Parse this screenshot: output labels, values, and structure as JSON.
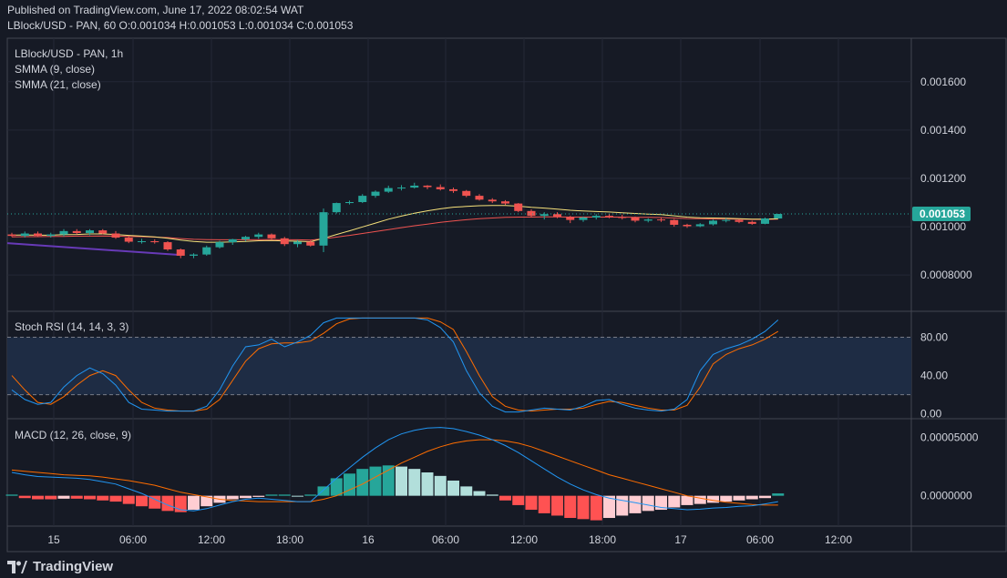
{
  "header": {
    "published": "Published on TradingView.com, June 17, 2022 08:02:54 WAT",
    "ohlc": "LBlock/USD - PAN, 60 O:0.001034 H:0.001053 L:0.001034 C:0.001053"
  },
  "footer": {
    "brand": "TradingView",
    "logo_icon": "tradingview-logo-icon"
  },
  "colors": {
    "background": "#161a25",
    "grid": "#242836",
    "up": "#26a69a",
    "down": "#ef5350",
    "smma9": "#f7e27b",
    "smma21": "#ef5350",
    "trendline": "#673ab7",
    "stoch_k": "#2196f3",
    "stoch_d": "#ff6d00",
    "band": "#1e2c44",
    "macd": "#2196f3",
    "signal": "#ff6d00",
    "hist_up_strong": "#26a69a",
    "hist_up_weak": "#b2dfdb",
    "hist_down_strong": "#ff5252",
    "hist_down_weak": "#ffcdd2",
    "price_badge": "#26a69a"
  },
  "chart_data": [
    {
      "type": "candlestick",
      "title": "LBlock/USD - PAN, 1h",
      "legend": [
        "SMMA (9, close)",
        "SMMA (21, close)"
      ],
      "x": [
        "15",
        "06:00",
        "12:00",
        "18:00",
        "16",
        "06:00",
        "12:00",
        "18:00",
        "17",
        "06:00",
        "12:00"
      ],
      "y_ticks": [
        "0.001600",
        "0.001400",
        "0.001200",
        "0.001000",
        "0.0008000"
      ],
      "ylim": [
        0.00065,
        0.00178
      ],
      "last_price": "0.001053",
      "ohlc": [
        [
          0.000968,
          0.000975,
          0.000958,
          0.000962
        ],
        [
          0.000962,
          0.00098,
          0.000955,
          0.000972
        ],
        [
          0.000972,
          0.00098,
          0.000958,
          0.000962
        ],
        [
          0.000962,
          0.000975,
          0.000955,
          0.000968
        ],
        [
          0.000968,
          0.00099,
          0.00096,
          0.000982
        ],
        [
          0.000982,
          0.00099,
          0.000968,
          0.000974
        ],
        [
          0.000974,
          0.00099,
          0.000965,
          0.000985
        ],
        [
          0.000985,
          0.00099,
          0.000968,
          0.000972
        ],
        [
          0.000972,
          0.000982,
          0.00095,
          0.000955
        ],
        [
          0.000955,
          0.000962,
          0.000932,
          0.000938
        ],
        [
          0.000938,
          0.00095,
          0.00093,
          0.00094
        ],
        [
          0.00094,
          0.000948,
          0.00093,
          0.000936
        ],
        [
          0.000936,
          0.00094,
          0.0009,
          0.000906
        ],
        [
          0.000906,
          0.00091,
          0.00087,
          0.00088
        ],
        [
          0.00088,
          0.00089,
          0.00087,
          0.000885
        ],
        [
          0.000885,
          0.000922,
          0.00088,
          0.000915
        ],
        [
          0.000915,
          0.000942,
          0.00091,
          0.000936
        ],
        [
          0.000936,
          0.00095,
          0.000925,
          0.000948
        ],
        [
          0.000948,
          0.000962,
          0.00094,
          0.000958
        ],
        [
          0.000958,
          0.000975,
          0.00095,
          0.000968
        ],
        [
          0.000968,
          0.000972,
          0.000945,
          0.000952
        ],
        [
          0.000952,
          0.000958,
          0.00092,
          0.000928
        ],
        [
          0.000928,
          0.000945,
          0.000915,
          0.000938
        ],
        [
          0.000938,
          0.000945,
          0.000918,
          0.000922
        ],
        [
          0.000922,
          0.001075,
          0.000895,
          0.00106
        ],
        [
          0.00106,
          0.0011,
          0.001055,
          0.001098
        ],
        [
          0.001098,
          0.001108,
          0.001092,
          0.001102
        ],
        [
          0.001102,
          0.001135,
          0.001098,
          0.001128
        ],
        [
          0.001128,
          0.00115,
          0.00112,
          0.001145
        ],
        [
          0.001145,
          0.00117,
          0.00114,
          0.00116
        ],
        [
          0.00116,
          0.001172,
          0.00115,
          0.001162
        ],
        [
          0.001162,
          0.001182,
          0.001158,
          0.00117
        ],
        [
          0.00117,
          0.001172,
          0.001155,
          0.001164
        ],
        [
          0.001164,
          0.001175,
          0.00115,
          0.001155
        ],
        [
          0.001155,
          0.001162,
          0.00114,
          0.001148
        ],
        [
          0.001148,
          0.001152,
          0.001122,
          0.001128
        ],
        [
          0.001128,
          0.001135,
          0.001108,
          0.001112
        ],
        [
          0.001112,
          0.001118,
          0.001098,
          0.001105
        ],
        [
          0.001105,
          0.00111,
          0.00109,
          0.001096
        ],
        [
          0.001096,
          0.001098,
          0.00106,
          0.001065
        ],
        [
          0.001065,
          0.001072,
          0.00104,
          0.001045
        ],
        [
          0.001045,
          0.00106,
          0.00103,
          0.001052
        ],
        [
          0.001052,
          0.00106,
          0.001035,
          0.00104
        ],
        [
          0.00104,
          0.001045,
          0.001015,
          0.001028
        ],
        [
          0.001028,
          0.001042,
          0.00102,
          0.001038
        ],
        [
          0.001038,
          0.001052,
          0.00103,
          0.001045
        ],
        [
          0.001045,
          0.001055,
          0.001035,
          0.00104
        ],
        [
          0.00104,
          0.00105,
          0.00103,
          0.001038
        ],
        [
          0.001038,
          0.001042,
          0.001018,
          0.001025
        ],
        [
          0.001025,
          0.001035,
          0.001018,
          0.00103
        ],
        [
          0.00103,
          0.001038,
          0.00102,
          0.001028
        ],
        [
          0.001028,
          0.001032,
          0.001,
          0.001008
        ],
        [
          0.001008,
          0.001012,
          0.000995,
          0.001002
        ],
        [
          0.001002,
          0.001015,
          0.000998,
          0.00101
        ],
        [
          0.00101,
          0.00103,
          0.001005,
          0.001025
        ],
        [
          0.001025,
          0.001035,
          0.001018,
          0.001028
        ],
        [
          0.001028,
          0.001032,
          0.001015,
          0.00102
        ],
        [
          0.00102,
          0.001025,
          0.001008,
          0.001012
        ],
        [
          0.001012,
          0.001038,
          0.00101,
          0.001034
        ],
        [
          0.001034,
          0.001053,
          0.001034,
          0.001053
        ]
      ],
      "smma9": [
        0.000965,
        0.000966,
        0.000965,
        0.000965,
        0.000967,
        0.000968,
        0.00097,
        0.00097,
        0.000968,
        0.000964,
        0.000961,
        0.000958,
        0.000952,
        0.000945,
        0.000939,
        0.000936,
        0.000936,
        0.000937,
        0.000939,
        0.000942,
        0.000943,
        0.000941,
        0.00094,
        0.000938,
        0.000952,
        0.000968,
        0.000983,
        0.000999,
        0.001015,
        0.001031,
        0.001044,
        0.001056,
        0.001066,
        0.001074,
        0.001081,
        0.001084,
        0.001087,
        0.001088,
        0.001088,
        0.001085,
        0.00108,
        0.001077,
        0.001073,
        0.001068,
        0.001065,
        0.001063,
        0.001061,
        0.001058,
        0.001055,
        0.001052,
        0.00105,
        0.001045,
        0.00104,
        0.001037,
        0.001036,
        0.001035,
        0.001033,
        0.001031,
        0.001031,
        0.001033
      ],
      "smma21": [
        0.000958,
        0.000959,
        0.000959,
        0.00096,
        0.00096,
        0.000961,
        0.000961,
        0.000962,
        0.000961,
        0.00096,
        0.000959,
        0.000957,
        0.000955,
        0.000951,
        0.000948,
        0.000947,
        0.000946,
        0.000946,
        0.000946,
        0.000947,
        0.000947,
        0.000946,
        0.000946,
        0.000945,
        0.00095,
        0.000957,
        0.000964,
        0.000972,
        0.00098,
        0.000988,
        0.000996,
        0.001004,
        0.001011,
        0.001018,
        0.001024,
        0.001029,
        0.001033,
        0.001036,
        0.001039,
        0.00104,
        0.00104,
        0.001041,
        0.001041,
        0.00104,
        0.00104,
        0.00104,
        0.00104,
        0.00104,
        0.001039,
        0.001039,
        0.001038,
        0.001036,
        0.001034,
        0.001033,
        0.001032,
        0.001032,
        0.001031,
        0.00103,
        0.00103,
        0.001031
      ],
      "trendline": [
        [
          0,
          0.000932
        ],
        [
          13,
          0.000883
        ]
      ]
    },
    {
      "type": "line",
      "title": "Stoch RSI (14, 14, 3, 3)",
      "y_ticks": [
        "80.00",
        "40.00",
        "0.00"
      ],
      "ylim": [
        -5,
        107
      ],
      "band": [
        20,
        80
      ],
      "k": [
        25,
        15,
        10,
        12,
        28,
        40,
        48,
        42,
        30,
        12,
        5,
        4,
        3,
        3,
        3,
        8,
        25,
        50,
        70,
        72,
        78,
        70,
        75,
        82,
        95,
        100,
        100,
        100,
        100,
        100,
        100,
        100,
        98,
        90,
        75,
        45,
        22,
        8,
        2,
        2,
        4,
        6,
        5,
        4,
        8,
        14,
        15,
        10,
        6,
        4,
        3,
        5,
        15,
        45,
        62,
        68,
        72,
        78,
        86,
        98
      ],
      "d": [
        40,
        25,
        12,
        10,
        18,
        30,
        40,
        45,
        40,
        25,
        12,
        6,
        4,
        3,
        3,
        5,
        15,
        35,
        55,
        68,
        73,
        74,
        74,
        76,
        84,
        94,
        99,
        100,
        100,
        100,
        100,
        100,
        100,
        96,
        88,
        65,
        40,
        18,
        8,
        4,
        3,
        4,
        5,
        5,
        6,
        10,
        13,
        12,
        9,
        6,
        4,
        4,
        9,
        28,
        52,
        62,
        68,
        72,
        78,
        86
      ]
    },
    {
      "type": "line+bar",
      "title": "MACD (12, 26, close, 9)",
      "y_ticks": [
        "0.00005000",
        "0.0000000"
      ],
      "ylim": [
        -2.6e-05,
        6.6e-05
      ],
      "macd": [
        2e-05,
        1.8e-05,
        1.65e-05,
        1.6e-05,
        1.55e-05,
        1.5e-05,
        1.4e-05,
        1.2e-05,
        1e-05,
        6e-06,
        2e-06,
        -3e-06,
        -8e-06,
        -1.2e-05,
        -1.3e-05,
        -1.1e-05,
        -8e-06,
        -5e-06,
        -3e-06,
        -2e-06,
        -3e-06,
        -4e-06,
        -5e-06,
        -5e-06,
        5e-06,
        1.5e-05,
        2.4e-05,
        3.3e-05,
        4.1e-05,
        4.8e-05,
        5.3e-05,
        5.6e-05,
        5.8e-05,
        5.85e-05,
        5.75e-05,
        5.5e-05,
        5.2e-05,
        4.8e-05,
        4.3e-05,
        3.7e-05,
        3e-05,
        2.3e-05,
        1.6e-05,
        1e-05,
        5e-06,
        1e-06,
        -2e-06,
        -4e-06,
        -6e-06,
        -8e-06,
        -1e-05,
        -1.1e-05,
        -1.2e-05,
        -1.15e-05,
        -1.05e-05,
        -1e-05,
        -9e-06,
        -8.5e-06,
        -7e-06,
        -5e-06
      ],
      "signal": [
        2.2e-05,
        2.1e-05,
        2e-05,
        1.9e-05,
        1.8e-05,
        1.75e-05,
        1.7e-05,
        1.6e-05,
        1.45e-05,
        1.3e-05,
        1.1e-05,
        9e-06,
        6e-06,
        3e-06,
        1e-06,
        -1e-06,
        -3e-06,
        -4e-06,
        -4.5e-06,
        -5e-06,
        -5e-06,
        -5e-06,
        -5e-06,
        -5e-06,
        -3e-06,
        0.0,
        5e-06,
        1e-05,
        1.6e-05,
        2.2e-05,
        2.8e-05,
        3.3e-05,
        3.8e-05,
        4.2e-05,
        4.5e-05,
        4.7e-05,
        4.8e-05,
        4.8e-05,
        4.7e-05,
        4.5e-05,
        4.2e-05,
        3.8e-05,
        3.4e-05,
        3e-05,
        2.6e-05,
        2.2e-05,
        1.8e-05,
        1.5e-05,
        1.2e-05,
        9e-06,
        6e-06,
        3e-06,
        0.0,
        -2e-06,
        -4e-06,
        -5.5e-06,
        -6.5e-06,
        -7.5e-06,
        -8e-06,
        -8e-06
      ],
      "hist": [
        1e-06,
        -2e-06,
        -3e-06,
        -3e-06,
        -2.5e-06,
        -2.5e-06,
        -3e-06,
        -4e-06,
        -5e-06,
        -7e-06,
        -9e-06,
        -1.1e-05,
        -1.3e-05,
        -1.4e-05,
        -1.2e-05,
        -9e-06,
        -6e-06,
        -3e-06,
        -2e-06,
        -1e-06,
        1e-06,
        1e-06,
        0.0,
        1e-06,
        8e-06,
        1.5e-05,
        1.9e-05,
        2.3e-05,
        2.5e-05,
        2.6e-05,
        2.5e-05,
        2.3e-05,
        2e-05,
        1.7e-05,
        1.3e-05,
        8e-06,
        4e-06,
        1e-06,
        -4e-06,
        -8e-06,
        -1.2e-05,
        -1.5e-05,
        -1.7e-05,
        -1.9e-05,
        -2e-05,
        -2.1e-05,
        -1.9e-05,
        -1.7e-05,
        -1.5e-05,
        -1.3e-05,
        -1.2e-05,
        -1e-05,
        -8e-06,
        -7e-06,
        -6e-06,
        -5e-06,
        -4e-06,
        -3e-06,
        -2e-06,
        2e-06
      ]
    }
  ]
}
